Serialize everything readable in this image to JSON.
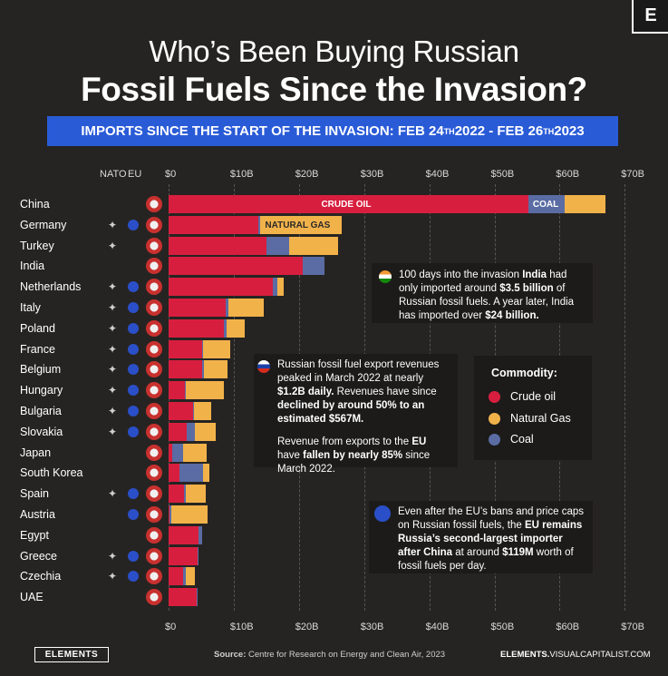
{
  "brand_logo": "E",
  "title_line1": "Who’s Been Buying Russian",
  "title_line2": "Fossil Fuels Since the Invasion?",
  "banner": {
    "prefix": "IMPORTS SINCE THE START OF THE INVASION:  FEB 24",
    "sup1": "TH",
    "middle": " 2022 - FEB 26",
    "sup2": "TH",
    "suffix": " 2023"
  },
  "headers": {
    "nato": "NATO",
    "eu": "EU"
  },
  "colors": {
    "crude_oil": "#d81e3f",
    "natural_gas": "#f2b24a",
    "coal": "#5a6ca3",
    "banner": "#2a5bd7",
    "eu_blue": "#2a4fc8"
  },
  "chart_data": {
    "type": "bar",
    "orientation": "horizontal",
    "stacked": true,
    "xlim": [
      0,
      70
    ],
    "x_unit": "B",
    "x_ticks": [
      "$0",
      "$10B",
      "$20B",
      "$30B",
      "$40B",
      "$50B",
      "$60B",
      "$70B"
    ],
    "categories": [
      "China",
      "Germany",
      "Turkey",
      "India",
      "Netherlands",
      "Italy",
      "Poland",
      "France",
      "Belgium",
      "Hungary",
      "Bulgaria",
      "Slovakia",
      "Japan",
      "South Korea",
      "Spain",
      "Austria",
      "Egypt",
      "Greece",
      "Czechia",
      "UAE"
    ],
    "nato": [
      false,
      true,
      true,
      false,
      true,
      true,
      true,
      true,
      true,
      true,
      true,
      true,
      false,
      false,
      true,
      false,
      false,
      true,
      true,
      false
    ],
    "eu": [
      false,
      true,
      false,
      false,
      true,
      true,
      true,
      true,
      true,
      true,
      true,
      true,
      false,
      false,
      true,
      true,
      false,
      true,
      true,
      false
    ],
    "series": [
      {
        "name": "Crude oil",
        "values": [
          55.2,
          13.8,
          15.0,
          20.6,
          16.0,
          8.8,
          8.5,
          5.2,
          5.2,
          2.5,
          3.8,
          2.8,
          0.5,
          1.6,
          2.3,
          0.2,
          4.6,
          4.4,
          2.2,
          4.3
        ]
      },
      {
        "name": "Coal",
        "values": [
          5.6,
          0.2,
          3.5,
          3.3,
          0.7,
          0.4,
          0.4,
          0.1,
          0.2,
          0.2,
          0.1,
          1.2,
          1.7,
          3.7,
          0.4,
          0.2,
          0.5,
          0.1,
          0.5,
          0.1
        ]
      },
      {
        "name": "Natural Gas",
        "values": [
          6.2,
          12.5,
          7.5,
          0,
          0.9,
          5.4,
          2.8,
          4.2,
          3.7,
          5.8,
          2.6,
          3.2,
          3.6,
          0.9,
          3.0,
          5.6,
          0,
          0,
          1.4,
          0
        ]
      }
    ],
    "bar_labels": {
      "crude_oil": "CRUDE OIL",
      "coal": "COAL",
      "natural_gas": "NATURAL GAS"
    },
    "legend": {
      "title": "Commodity:",
      "items": [
        {
          "label": "Crude oil",
          "color": "#d81e3f"
        },
        {
          "label": "Natural Gas",
          "color": "#f2b24a"
        },
        {
          "label": "Coal",
          "color": "#5a6ca3"
        }
      ]
    }
  },
  "annotations": {
    "india": {
      "p1": "100 days into the invasion ",
      "b1": "India",
      "p2": " had only imported around ",
      "b2": "$3.5 billion",
      "p3": " of Russian fossil fuels. A year later, India has imported over ",
      "b3": "$24 billion."
    },
    "russia": {
      "p1": "Russian fossil fuel export revenues peaked in March 2022 at nearly ",
      "b1": "$1.2B daily.",
      "p2": " Revenues have since ",
      "b2": "declined by around 50% to an estimated $567M.",
      "p3": "Revenue from exports to the ",
      "b3": "EU",
      "p4": " have ",
      "b4": "fallen by nearly 85%",
      "p5": " since March 2022."
    },
    "eu": {
      "p1": "Even after the EU’s bans and price caps on Russian fossil fuels, the ",
      "b1": "EU remains Russia’s second-largest importer after China",
      "p2": " at around ",
      "b2": "$119M",
      "p3": " worth of fossil fuels per day."
    }
  },
  "footer": {
    "brand": "ELEMENTS",
    "source_label": "Source:",
    "source_text": " Centre for Research on Energy and Clean Air, 2023",
    "site_bold": "ELEMENTS.",
    "site_rest": "VISUALCAPITALIST.COM"
  }
}
